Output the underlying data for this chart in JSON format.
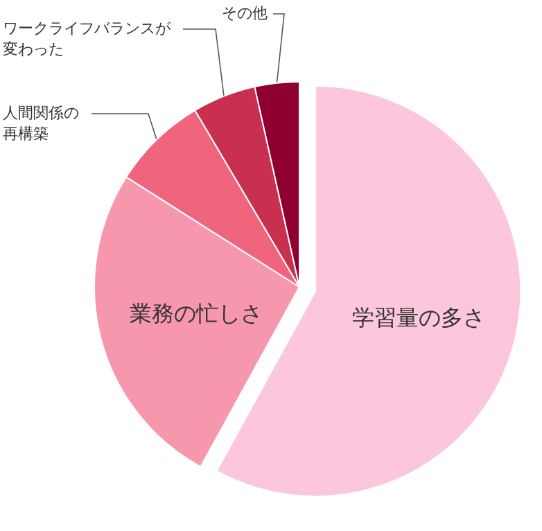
{
  "chart_data": {
    "type": "pie",
    "categories": [
      "学習量の多さ",
      "業務の忙しさ",
      "人間関係の再構築",
      "ワークライフバランスが変わった",
      "その他"
    ],
    "values": [
      58,
      26,
      7.5,
      5,
      3.5
    ],
    "colors": [
      "#fcc6dc",
      "#f797ae",
      "#f0657e",
      "#c9304f",
      "#8f0030"
    ],
    "legend": false
  }
}
